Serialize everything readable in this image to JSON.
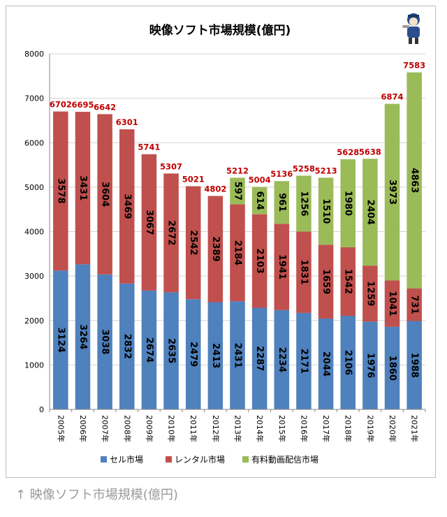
{
  "chart_data": {
    "type": "bar",
    "stacked": true,
    "title": "映像ソフト市場規模(億円)",
    "categories": [
      "2005年",
      "2006年",
      "2007年",
      "2008年",
      "2009年",
      "2010年",
      "2011年",
      "2012年",
      "2013年",
      "2014年",
      "2015年",
      "2016年",
      "2017年",
      "2018年",
      "2019年",
      "2020年",
      "2021年"
    ],
    "series": [
      {
        "name": "セル市場",
        "color": "#4f81bd",
        "values": [
          3124,
          3264,
          3038,
          2832,
          2674,
          2635,
          2479,
          2413,
          2431,
          2287,
          2234,
          2171,
          2044,
          2106,
          1976,
          1860,
          1988
        ]
      },
      {
        "name": "レンタル市場",
        "color": "#c0504d",
        "values": [
          3578,
          3431,
          3604,
          3469,
          3067,
          2672,
          2542,
          2389,
          2184,
          2103,
          1941,
          1831,
          1659,
          1542,
          1259,
          1041,
          731
        ]
      },
      {
        "name": "有料動画配信市場",
        "color": "#9bbb59",
        "values": [
          null,
          null,
          null,
          null,
          null,
          null,
          null,
          null,
          597,
          614,
          961,
          1256,
          1510,
          1980,
          2404,
          3973,
          4863
        ]
      }
    ],
    "totals": [
      6702,
      6695,
      6642,
      6301,
      5741,
      5307,
      5021,
      4802,
      5212,
      5004,
      5136,
      5258,
      5213,
      5628,
      5638,
      6874,
      7583
    ],
    "ylim": [
      0,
      8000
    ],
    "yticks": [
      0,
      1000,
      2000,
      3000,
      4000,
      5000,
      6000,
      7000,
      8000
    ],
    "grid": true,
    "legend_position": "bottom",
    "total_label_color": "#c00000"
  },
  "caption": "↑ 映像ソフト市場規模(億円)"
}
